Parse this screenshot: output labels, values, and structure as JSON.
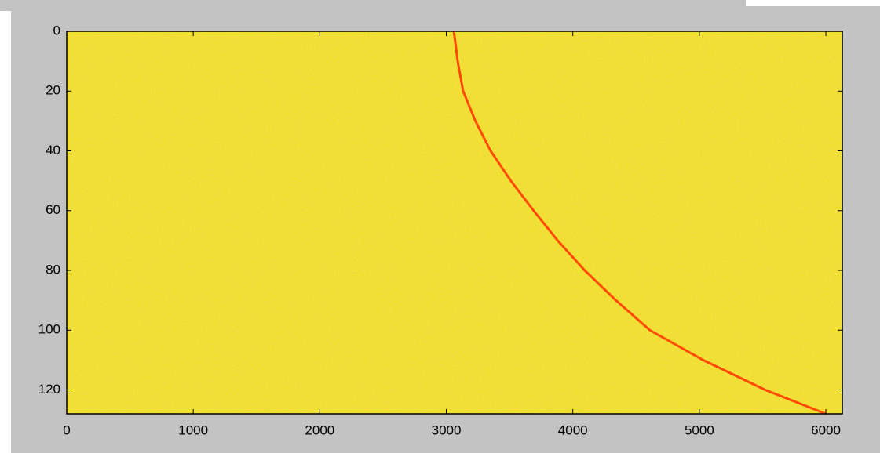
{
  "chart_data": {
    "type": "line",
    "x": [
      3060,
      3090,
      3133,
      3230,
      3350,
      3510,
      3690,
      3880,
      4094,
      4340,
      4609,
      5030,
      5521,
      6000
    ],
    "series": [
      {
        "color": "#ff4a00",
        "values": [
          0,
          10,
          20,
          30,
          40,
          50,
          60,
          70,
          80,
          90,
          100,
          110,
          120,
          128
        ]
      }
    ],
    "xlim": [
      0,
      6130
    ],
    "xticks": [
      0,
      1000,
      2000,
      3000,
      4000,
      5000,
      6000
    ],
    "ylim": [
      128,
      0
    ],
    "yticks": [
      0,
      20,
      40,
      60,
      80,
      100,
      120
    ],
    "image_color": "#f2dc00"
  }
}
